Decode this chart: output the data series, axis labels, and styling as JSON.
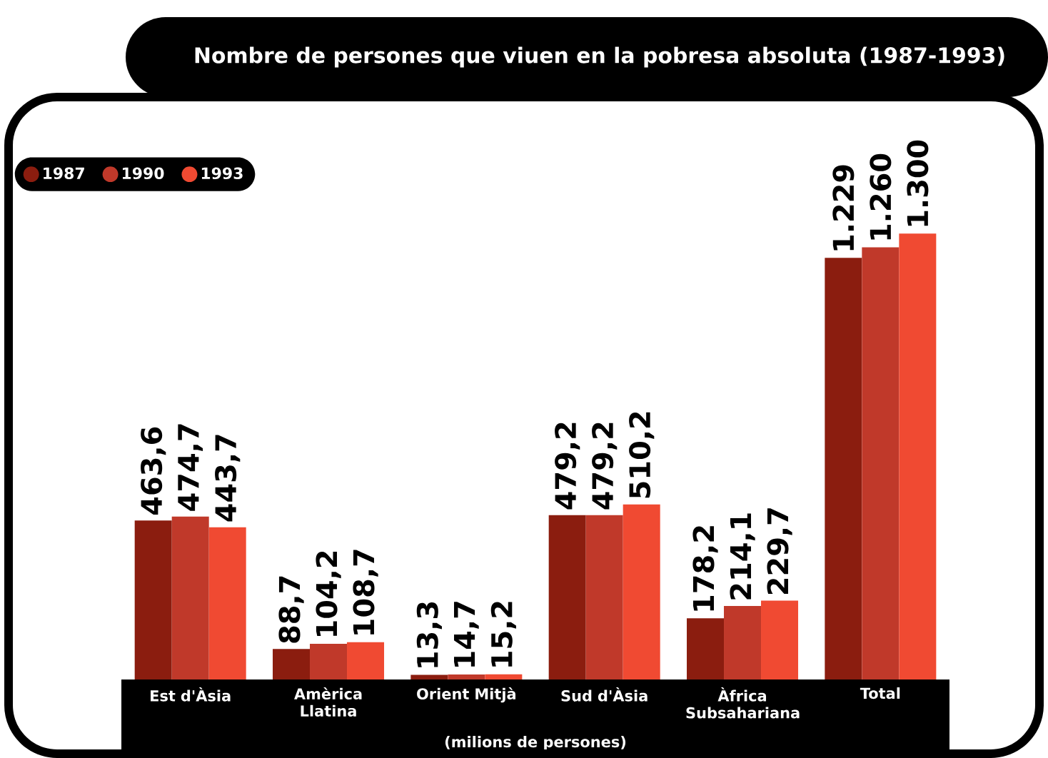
{
  "chart_data": {
    "type": "bar",
    "title": "Nombre de persones que viuen en la pobresa absoluta (1987-1993)",
    "xlabel": "(milions de persones)",
    "categories": [
      "Est d'Àsia",
      "Amèrica Llatina",
      "Orient Mitjà",
      "Sud d'Àsia",
      "Àfrica Subsahariana",
      "Total"
    ],
    "legend": "top left",
    "series": [
      {
        "name": "1987",
        "color": "#8b1d0f",
        "values": [
          463.6,
          88.7,
          13.3,
          479.2,
          178.2,
          1229
        ],
        "value_labels": [
          "463,6",
          "88,7",
          "13,3",
          "479,2",
          "178,2",
          "1.229"
        ]
      },
      {
        "name": "1990",
        "color": "#c0392a",
        "values": [
          474.7,
          104.2,
          14.7,
          479.2,
          214.1,
          1260
        ],
        "value_labels": [
          "474,7",
          "104,2",
          "14,7",
          "479,2",
          "214,1",
          "1.260"
        ]
      },
      {
        "name": "1993",
        "color": "#f04a32",
        "values": [
          443.7,
          108.7,
          15.2,
          510.2,
          229.7,
          1300
        ],
        "value_labels": [
          "443,7",
          "108,7",
          "15,2",
          "510,2",
          "229,7",
          "1.300"
        ]
      }
    ]
  }
}
